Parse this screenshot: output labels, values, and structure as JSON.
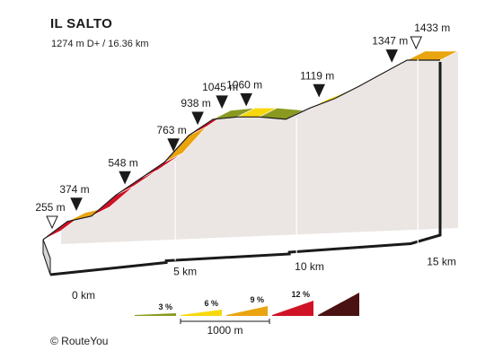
{
  "header": {
    "title": "IL SALTO",
    "subtitle": "1274 m D+ / 16.36 km"
  },
  "footer": {
    "credit": "© RouteYou"
  },
  "colors": {
    "face": "#ebe6e3",
    "side": "#bfbfbf",
    "olive": "#8a9a20",
    "yellow": "#f7d80d",
    "orange": "#e9a510",
    "red": "#d01226",
    "darkred": "#4a1212",
    "axis": "#1a1a1a"
  },
  "chart_data": {
    "type": "area",
    "title": "IL SALTO",
    "subtitle": "1274 m D+ / 16.36 km",
    "x_unit": "km",
    "y_unit": "m",
    "xlim": [
      0,
      16.36
    ],
    "x_ticks": [
      {
        "value": 0,
        "label": "0 km"
      },
      {
        "value": 5,
        "label": "5 km"
      },
      {
        "value": 10,
        "label": "10 km"
      },
      {
        "value": 15,
        "label": "15 km"
      }
    ],
    "profile": [
      {
        "km": 0,
        "elev": 255
      },
      {
        "km": 1,
        "elev": 374
      },
      {
        "km": 2,
        "elev": 410
      },
      {
        "km": 3,
        "elev": 548
      },
      {
        "km": 4,
        "elev": 655
      },
      {
        "km": 5,
        "elev": 763
      },
      {
        "km": 6,
        "elev": 938
      },
      {
        "km": 7,
        "elev": 1045
      },
      {
        "km": 8,
        "elev": 1060
      },
      {
        "km": 8.9,
        "elev": 1060
      },
      {
        "km": 10,
        "elev": 1045
      },
      {
        "km": 11,
        "elev": 1119
      },
      {
        "km": 12,
        "elev": 1180
      },
      {
        "km": 13,
        "elev": 1260
      },
      {
        "km": 14,
        "elev": 1347
      },
      {
        "km": 15,
        "elev": 1433
      },
      {
        "km": 16.36,
        "elev": 1433
      }
    ],
    "segments": [
      {
        "from": 0,
        "to": 1,
        "grade": "red"
      },
      {
        "from": 1,
        "to": 2,
        "grade": "orange"
      },
      {
        "from": 2,
        "to": 3,
        "grade": "red"
      },
      {
        "from": 3,
        "to": 4,
        "grade": "red"
      },
      {
        "from": 4,
        "to": 5,
        "grade": "red"
      },
      {
        "from": 5,
        "to": 6,
        "grade": "orange"
      },
      {
        "from": 6,
        "to": 7,
        "grade": "red"
      },
      {
        "from": 7,
        "to": 8,
        "grade": "olive"
      },
      {
        "from": 8,
        "to": 8.9,
        "grade": "yellow"
      },
      {
        "from": 8.9,
        "to": 10,
        "grade": "olive"
      },
      {
        "from": 10,
        "to": 11,
        "grade": "olive"
      },
      {
        "from": 11,
        "to": 12,
        "grade": "yellow"
      },
      {
        "from": 12,
        "to": 13,
        "grade": "red"
      },
      {
        "from": 13,
        "to": 14,
        "grade": "red"
      },
      {
        "from": 14,
        "to": 15,
        "grade": "yellow"
      },
      {
        "from": 15,
        "to": 16.36,
        "grade": "orange"
      }
    ],
    "markers": [
      {
        "km": 0,
        "label": "255 m",
        "style": "open"
      },
      {
        "km": 1,
        "label": "374 m",
        "style": "filled"
      },
      {
        "km": 3,
        "label": "548 m",
        "style": "filled"
      },
      {
        "km": 5,
        "label": "763 m",
        "style": "filled"
      },
      {
        "km": 6,
        "label": "938 m",
        "style": "filled"
      },
      {
        "km": 7,
        "label": "1045 m",
        "style": "filled"
      },
      {
        "km": 8,
        "label": "1060 m",
        "style": "filled"
      },
      {
        "km": 11,
        "label": "1119 m",
        "style": "filled"
      },
      {
        "km": 14,
        "label": "1347 m",
        "style": "filled"
      },
      {
        "km": 15,
        "label": "1433 m",
        "style": "open"
      }
    ],
    "legend": {
      "items": [
        {
          "label": "3 %",
          "grade": "olive"
        },
        {
          "label": "6 %",
          "grade": "yellow"
        },
        {
          "label": "9 %",
          "grade": "orange"
        },
        {
          "label": "12 %",
          "grade": "red"
        },
        {
          "label": "",
          "grade": "darkred"
        }
      ],
      "scale_label": "1000 m"
    }
  }
}
